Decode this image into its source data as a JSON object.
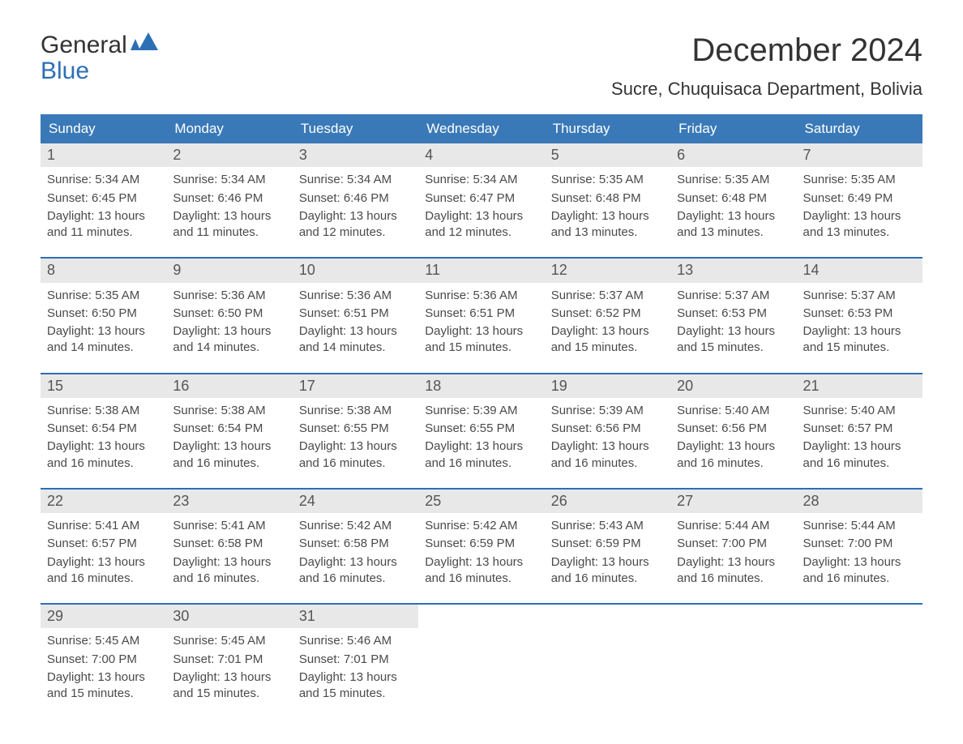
{
  "logo": {
    "word1": "General",
    "word2": "Blue",
    "icon_color": "#2d6fb5"
  },
  "title": "December 2024",
  "location": "Sucre, Chuquisaca Department, Bolivia",
  "colors": {
    "header_bg": "#3a79b7",
    "header_text": "#ffffff",
    "week_border": "#2d6fb5",
    "daynum_bg": "#e8e8e8",
    "body_text": "#4a4a4a",
    "page_bg": "#ffffff"
  },
  "typography": {
    "title_fontsize": 40,
    "location_fontsize": 22,
    "header_fontsize": 17,
    "daynum_fontsize": 18,
    "body_fontsize": 15
  },
  "layout": {
    "columns": 7,
    "rows": 5,
    "cell_min_height": 140
  },
  "day_names": [
    "Sunday",
    "Monday",
    "Tuesday",
    "Wednesday",
    "Thursday",
    "Friday",
    "Saturday"
  ],
  "labels": {
    "sunrise": "Sunrise:",
    "sunset": "Sunset:",
    "daylight": "Daylight:"
  },
  "weeks": [
    [
      {
        "n": "1",
        "sunrise": "5:34 AM",
        "sunset": "6:45 PM",
        "daylight": "13 hours and 11 minutes."
      },
      {
        "n": "2",
        "sunrise": "5:34 AM",
        "sunset": "6:46 PM",
        "daylight": "13 hours and 11 minutes."
      },
      {
        "n": "3",
        "sunrise": "5:34 AM",
        "sunset": "6:46 PM",
        "daylight": "13 hours and 12 minutes."
      },
      {
        "n": "4",
        "sunrise": "5:34 AM",
        "sunset": "6:47 PM",
        "daylight": "13 hours and 12 minutes."
      },
      {
        "n": "5",
        "sunrise": "5:35 AM",
        "sunset": "6:48 PM",
        "daylight": "13 hours and 13 minutes."
      },
      {
        "n": "6",
        "sunrise": "5:35 AM",
        "sunset": "6:48 PM",
        "daylight": "13 hours and 13 minutes."
      },
      {
        "n": "7",
        "sunrise": "5:35 AM",
        "sunset": "6:49 PM",
        "daylight": "13 hours and 13 minutes."
      }
    ],
    [
      {
        "n": "8",
        "sunrise": "5:35 AM",
        "sunset": "6:50 PM",
        "daylight": "13 hours and 14 minutes."
      },
      {
        "n": "9",
        "sunrise": "5:36 AM",
        "sunset": "6:50 PM",
        "daylight": "13 hours and 14 minutes."
      },
      {
        "n": "10",
        "sunrise": "5:36 AM",
        "sunset": "6:51 PM",
        "daylight": "13 hours and 14 minutes."
      },
      {
        "n": "11",
        "sunrise": "5:36 AM",
        "sunset": "6:51 PM",
        "daylight": "13 hours and 15 minutes."
      },
      {
        "n": "12",
        "sunrise": "5:37 AM",
        "sunset": "6:52 PM",
        "daylight": "13 hours and 15 minutes."
      },
      {
        "n": "13",
        "sunrise": "5:37 AM",
        "sunset": "6:53 PM",
        "daylight": "13 hours and 15 minutes."
      },
      {
        "n": "14",
        "sunrise": "5:37 AM",
        "sunset": "6:53 PM",
        "daylight": "13 hours and 15 minutes."
      }
    ],
    [
      {
        "n": "15",
        "sunrise": "5:38 AM",
        "sunset": "6:54 PM",
        "daylight": "13 hours and 16 minutes."
      },
      {
        "n": "16",
        "sunrise": "5:38 AM",
        "sunset": "6:54 PM",
        "daylight": "13 hours and 16 minutes."
      },
      {
        "n": "17",
        "sunrise": "5:38 AM",
        "sunset": "6:55 PM",
        "daylight": "13 hours and 16 minutes."
      },
      {
        "n": "18",
        "sunrise": "5:39 AM",
        "sunset": "6:55 PM",
        "daylight": "13 hours and 16 minutes."
      },
      {
        "n": "19",
        "sunrise": "5:39 AM",
        "sunset": "6:56 PM",
        "daylight": "13 hours and 16 minutes."
      },
      {
        "n": "20",
        "sunrise": "5:40 AM",
        "sunset": "6:56 PM",
        "daylight": "13 hours and 16 minutes."
      },
      {
        "n": "21",
        "sunrise": "5:40 AM",
        "sunset": "6:57 PM",
        "daylight": "13 hours and 16 minutes."
      }
    ],
    [
      {
        "n": "22",
        "sunrise": "5:41 AM",
        "sunset": "6:57 PM",
        "daylight": "13 hours and 16 minutes."
      },
      {
        "n": "23",
        "sunrise": "5:41 AM",
        "sunset": "6:58 PM",
        "daylight": "13 hours and 16 minutes."
      },
      {
        "n": "24",
        "sunrise": "5:42 AM",
        "sunset": "6:58 PM",
        "daylight": "13 hours and 16 minutes."
      },
      {
        "n": "25",
        "sunrise": "5:42 AM",
        "sunset": "6:59 PM",
        "daylight": "13 hours and 16 minutes."
      },
      {
        "n": "26",
        "sunrise": "5:43 AM",
        "sunset": "6:59 PM",
        "daylight": "13 hours and 16 minutes."
      },
      {
        "n": "27",
        "sunrise": "5:44 AM",
        "sunset": "7:00 PM",
        "daylight": "13 hours and 16 minutes."
      },
      {
        "n": "28",
        "sunrise": "5:44 AM",
        "sunset": "7:00 PM",
        "daylight": "13 hours and 16 minutes."
      }
    ],
    [
      {
        "n": "29",
        "sunrise": "5:45 AM",
        "sunset": "7:00 PM",
        "daylight": "13 hours and 15 minutes."
      },
      {
        "n": "30",
        "sunrise": "5:45 AM",
        "sunset": "7:01 PM",
        "daylight": "13 hours and 15 minutes."
      },
      {
        "n": "31",
        "sunrise": "5:46 AM",
        "sunset": "7:01 PM",
        "daylight": "13 hours and 15 minutes."
      },
      null,
      null,
      null,
      null
    ]
  ]
}
